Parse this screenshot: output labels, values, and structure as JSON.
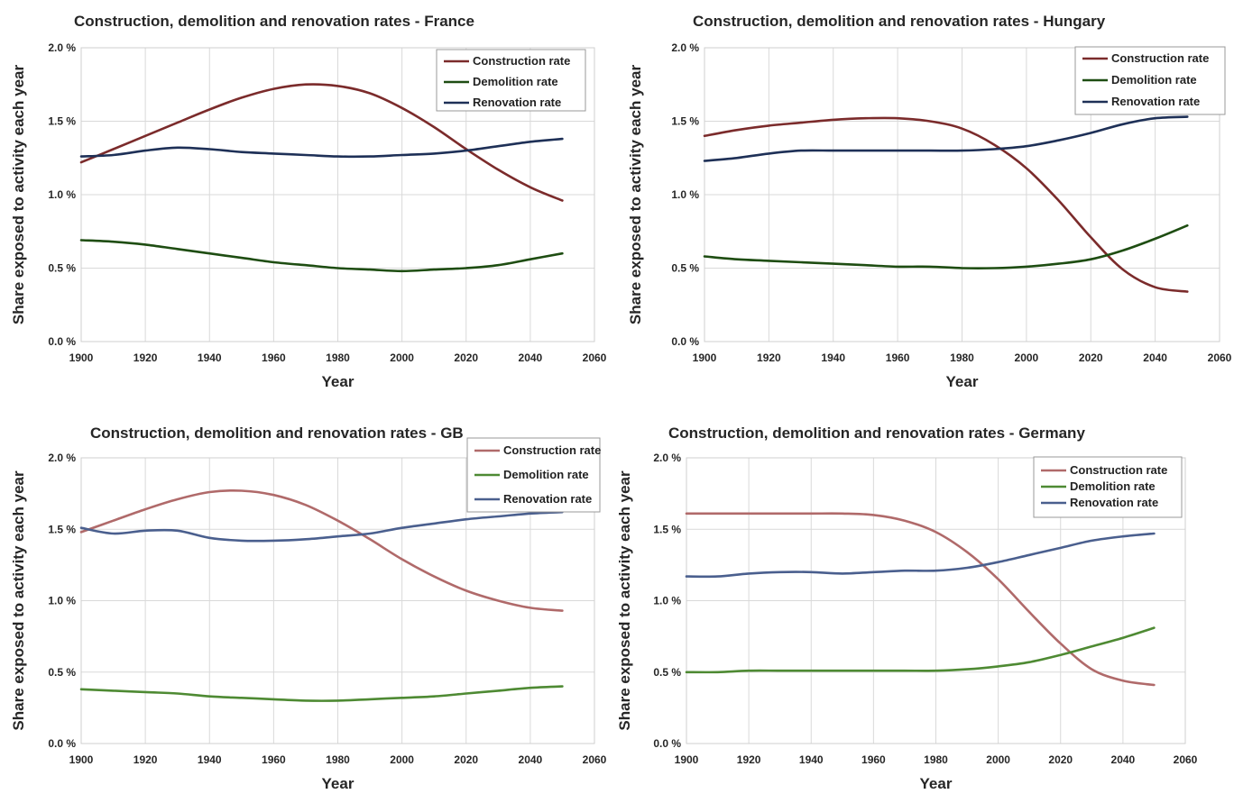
{
  "chart_data": [
    {
      "type": "line",
      "title": "Construction, demolition and renovation rates - France",
      "xlabel": "Year",
      "ylabel": "Share exposed to activity each year",
      "xlim": [
        1900,
        2060
      ],
      "ylim": [
        0,
        0.02
      ],
      "x_ticks": [
        "1900",
        "1920",
        "1940",
        "1960",
        "1980",
        "2000",
        "2020",
        "2040",
        "2060"
      ],
      "y_ticks": [
        "0.0 %",
        "0.5 %",
        "1.0 %",
        "1.5 %",
        "2.0 %"
      ],
      "grid": true,
      "legend_position": "top-right",
      "x": [
        1900,
        1910,
        1920,
        1930,
        1940,
        1950,
        1960,
        1970,
        1980,
        1990,
        2000,
        2010,
        2020,
        2030,
        2040,
        2050
      ],
      "series": [
        {
          "name": "Construction rate",
          "color": "#7b2b2b",
          "values": [
            0.0122,
            0.0131,
            0.014,
            0.0149,
            0.0158,
            0.0166,
            0.0172,
            0.0175,
            0.0174,
            0.0169,
            0.0159,
            0.0146,
            0.0131,
            0.0117,
            0.0105,
            0.0096
          ]
        },
        {
          "name": "Demolition rate",
          "color": "#1e4d12",
          "values": [
            0.0069,
            0.0068,
            0.0066,
            0.0063,
            0.006,
            0.0057,
            0.0054,
            0.0052,
            0.005,
            0.0049,
            0.0048,
            0.0049,
            0.005,
            0.0052,
            0.0056,
            0.006
          ]
        },
        {
          "name": "Renovation rate",
          "color": "#1e3057",
          "values": [
            0.0126,
            0.0127,
            0.013,
            0.0132,
            0.0131,
            0.0129,
            0.0128,
            0.0127,
            0.0126,
            0.0126,
            0.0127,
            0.0128,
            0.013,
            0.0133,
            0.0136,
            0.0138
          ]
        }
      ]
    },
    {
      "type": "line",
      "title": "Construction, demolition and renovation rates - Hungary",
      "xlabel": "Year",
      "ylabel": "Share exposed to activity each year",
      "xlim": [
        1900,
        2060
      ],
      "ylim": [
        0,
        0.02
      ],
      "x_ticks": [
        "1900",
        "1920",
        "1940",
        "1960",
        "1980",
        "2000",
        "2020",
        "2040",
        "2060"
      ],
      "y_ticks": [
        "0.0 %",
        "0.5 %",
        "1.0 %",
        "1.5 %",
        "2.0 %"
      ],
      "grid": true,
      "legend_position": "top-right",
      "x": [
        1900,
        1910,
        1920,
        1930,
        1940,
        1950,
        1960,
        1970,
        1980,
        1990,
        2000,
        2010,
        2020,
        2030,
        2040,
        2050
      ],
      "series": [
        {
          "name": "Construction rate",
          "color": "#7b2b2b",
          "values": [
            0.014,
            0.0144,
            0.0147,
            0.0149,
            0.0151,
            0.0152,
            0.0152,
            0.015,
            0.0145,
            0.0134,
            0.0118,
            0.0096,
            0.0071,
            0.0049,
            0.0037,
            0.0034
          ]
        },
        {
          "name": "Demolition rate",
          "color": "#1e4d12",
          "values": [
            0.0058,
            0.0056,
            0.0055,
            0.0054,
            0.0053,
            0.0052,
            0.0051,
            0.0051,
            0.005,
            0.005,
            0.0051,
            0.0053,
            0.0056,
            0.0062,
            0.007,
            0.0079
          ]
        },
        {
          "name": "Renovation rate",
          "color": "#1e3057",
          "values": [
            0.0123,
            0.0125,
            0.0128,
            0.013,
            0.013,
            0.013,
            0.013,
            0.013,
            0.013,
            0.0131,
            0.0133,
            0.0137,
            0.0142,
            0.0148,
            0.0152,
            0.0153
          ]
        }
      ]
    },
    {
      "type": "line",
      "title": "Construction, demolition and renovation rates - GB",
      "xlabel": "Year",
      "ylabel": "Share exposed to activity each year",
      "xlim": [
        1900,
        2060
      ],
      "ylim": [
        0,
        0.02
      ],
      "x_ticks": [
        "1900",
        "1920",
        "1940",
        "1960",
        "1980",
        "2000",
        "2020",
        "2040",
        "2060"
      ],
      "y_ticks": [
        "0.0 %",
        "0.5 %",
        "1.0 %",
        "1.5 %",
        "2.0 %"
      ],
      "grid": true,
      "legend_position": "top-right",
      "x": [
        1900,
        1910,
        1920,
        1930,
        1940,
        1950,
        1960,
        1970,
        1980,
        1990,
        2000,
        2010,
        2020,
        2030,
        2040,
        2050
      ],
      "series": [
        {
          "name": "Construction rate",
          "color": "#b06a6a",
          "values": [
            0.0148,
            0.0156,
            0.0164,
            0.0171,
            0.0176,
            0.0177,
            0.0174,
            0.0167,
            0.0156,
            0.0143,
            0.0129,
            0.0117,
            0.0107,
            0.01,
            0.0095,
            0.0093
          ]
        },
        {
          "name": "Demolition rate",
          "color": "#4e8a33",
          "values": [
            0.0038,
            0.0037,
            0.0036,
            0.0035,
            0.0033,
            0.0032,
            0.0031,
            0.003,
            0.003,
            0.0031,
            0.0032,
            0.0033,
            0.0035,
            0.0037,
            0.0039,
            0.004
          ]
        },
        {
          "name": "Renovation rate",
          "color": "#4a5f8e",
          "values": [
            0.0151,
            0.0147,
            0.0149,
            0.0149,
            0.0144,
            0.0142,
            0.0142,
            0.0143,
            0.0145,
            0.0147,
            0.0151,
            0.0154,
            0.0157,
            0.0159,
            0.0161,
            0.0162
          ]
        }
      ]
    },
    {
      "type": "line",
      "title": "Construction, demolition and renovation rates - Germany",
      "xlabel": "Year",
      "ylabel": "Share exposed to activity each year",
      "xlim": [
        1900,
        2060
      ],
      "ylim": [
        0,
        0.02
      ],
      "x_ticks": [
        "1900",
        "1920",
        "1940",
        "1960",
        "1980",
        "2000",
        "2020",
        "2040",
        "2060"
      ],
      "y_ticks": [
        "0.0 %",
        "0.5 %",
        "1.0 %",
        "1.5 %",
        "2.0 %"
      ],
      "grid": true,
      "legend_position": "top-right",
      "x": [
        1900,
        1910,
        1920,
        1930,
        1940,
        1950,
        1960,
        1970,
        1980,
        1990,
        2000,
        2010,
        2020,
        2030,
        2040,
        2050
      ],
      "series": [
        {
          "name": "Construction rate",
          "color": "#b06a6a",
          "values": [
            0.0161,
            0.0161,
            0.0161,
            0.0161,
            0.0161,
            0.0161,
            0.016,
            0.0156,
            0.0148,
            0.0134,
            0.0115,
            0.0092,
            0.007,
            0.0052,
            0.0044,
            0.0041
          ]
        },
        {
          "name": "Demolition rate",
          "color": "#4e8a33",
          "values": [
            0.005,
            0.005,
            0.0051,
            0.0051,
            0.0051,
            0.0051,
            0.0051,
            0.0051,
            0.0051,
            0.0052,
            0.0054,
            0.0057,
            0.0062,
            0.0068,
            0.0074,
            0.0081
          ]
        },
        {
          "name": "Renovation rate",
          "color": "#4a5f8e",
          "values": [
            0.0117,
            0.0117,
            0.0119,
            0.012,
            0.012,
            0.0119,
            0.012,
            0.0121,
            0.0121,
            0.0123,
            0.0127,
            0.0132,
            0.0137,
            0.0142,
            0.0145,
            0.0147
          ]
        }
      ]
    }
  ]
}
